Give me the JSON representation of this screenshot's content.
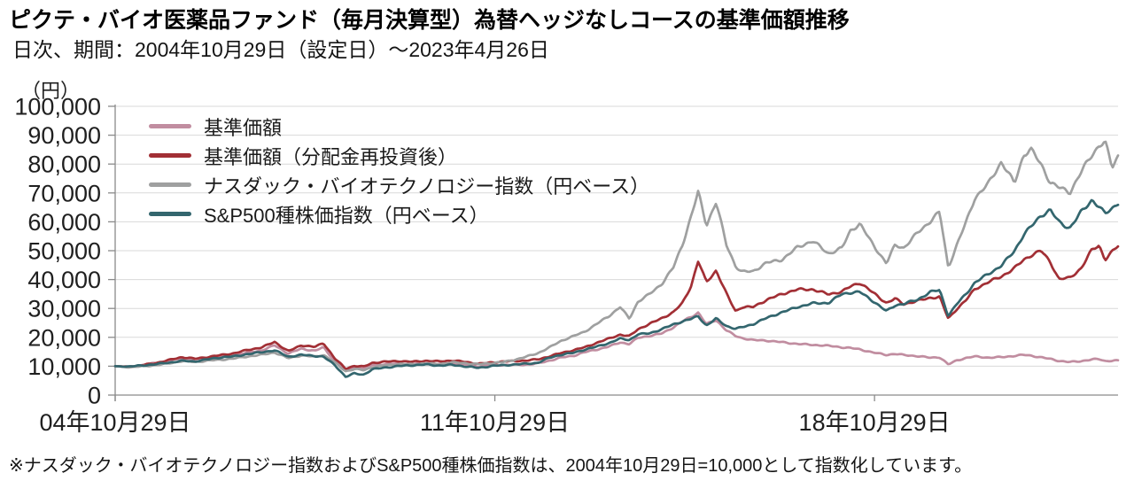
{
  "page": {
    "title": "ピクテ・バイオ医薬品ファンド（毎月決算型）為替ヘッジなしコースの基準価額推移",
    "subtitle": "日次、期間：2004年10月29日（設定日）～2023年4月26日"
  },
  "footnote": {
    "text": "※ナスダック・バイオテクノロジー指数およびS&P500種株価指数は、2004年10月29日=10,000として指数化しています。"
  },
  "colors": {
    "nav": "#c18da0",
    "nav_reinvested": "#a22f35",
    "nasdaq_biotech": "#9fa0a0",
    "sp500": "#33666e",
    "grid": "#d9d9d9",
    "axis": "#8a8a8a",
    "tick_text": "#1f1f1f"
  },
  "chart_data": {
    "type": "line",
    "unit_label": "（円）",
    "ylim": [
      0,
      100000
    ],
    "ytick_step": 10000,
    "ytick_labels": [
      "0",
      "10,000",
      "20,000",
      "30,000",
      "40,000",
      "50,000",
      "60,000",
      "70,000",
      "80,000",
      "90,000",
      "100,000"
    ],
    "x_range_years": [
      0,
      18.49
    ],
    "xticks": [
      {
        "t": 0,
        "label": "04年10月29日"
      },
      {
        "t": 7,
        "label": "11年10月29日"
      },
      {
        "t": 14,
        "label": "18年10月29日"
      }
    ],
    "legend_position": "top-left-inside",
    "x_years": [
      0,
      0.25,
      0.49,
      0.74,
      0.98,
      1.23,
      1.47,
      1.72,
      1.96,
      2.21,
      2.45,
      2.7,
      2.94,
      3.19,
      3.43,
      3.68,
      3.84,
      4.05,
      4.25,
      4.41,
      4.58,
      4.74,
      4.98,
      5.23,
      5.47,
      5.72,
      5.96,
      6.21,
      6.45,
      6.7,
      6.99,
      7.19,
      7.35,
      7.57,
      7.79,
      8.01,
      8.22,
      8.45,
      8.66,
      8.87,
      9.1,
      9.31,
      9.48,
      9.64,
      9.85,
      10.08,
      10.29,
      10.46,
      10.62,
      10.75,
      10.9,
      11.08,
      11.27,
      11.44,
      11.55,
      11.76,
      12.01,
      12.3,
      12.58,
      12.86,
      13.15,
      13.4,
      13.56,
      13.73,
      13.97,
      14.22,
      14.38,
      14.54,
      14.79,
      15.03,
      15.2,
      15.36,
      15.52,
      15.69,
      15.85,
      16.1,
      16.34,
      16.58,
      16.75,
      16.88,
      17.07,
      17.24,
      17.4,
      17.6,
      17.81,
      18.01,
      18.14,
      18.25,
      18.38,
      18.49
    ],
    "series": [
      {
        "name": "基準価額",
        "color": "nav",
        "values": [
          10000,
          9800,
          10300,
          11000,
          11800,
          12800,
          12300,
          12900,
          13400,
          13900,
          14800,
          15500,
          17200,
          14300,
          16000,
          15400,
          16600,
          11800,
          8700,
          9600,
          9200,
          10400,
          10800,
          11000,
          10800,
          11000,
          10700,
          10900,
          10500,
          9900,
          10300,
          10400,
          10500,
          10600,
          11000,
          11900,
          12900,
          13600,
          14900,
          15800,
          16800,
          18200,
          17600,
          19800,
          20500,
          21400,
          23500,
          25500,
          27000,
          28500,
          24500,
          26000,
          22500,
          20500,
          19800,
          19000,
          18800,
          18300,
          17800,
          17400,
          17000,
          16500,
          16300,
          15900,
          14800,
          13900,
          14200,
          13800,
          13500,
          13000,
          13200,
          10600,
          12000,
          12800,
          13300,
          13000,
          13200,
          13600,
          13900,
          13600,
          13000,
          12500,
          11900,
          11500,
          11800,
          12300,
          12400,
          11700,
          11900,
          11900
        ]
      },
      {
        "name": "基準価額（分配金再投資後）",
        "color": "nav_reinvested",
        "values": [
          10000,
          9800,
          10400,
          11100,
          12000,
          13100,
          12600,
          13300,
          13900,
          14500,
          15600,
          16500,
          18500,
          15200,
          17200,
          16600,
          18000,
          12700,
          9200,
          10200,
          9800,
          11100,
          11500,
          11800,
          11600,
          11900,
          11600,
          11900,
          11500,
          10900,
          11400,
          11600,
          11700,
          11900,
          12400,
          13500,
          14600,
          15500,
          16500,
          18000,
          19600,
          21000,
          20400,
          22800,
          24500,
          26600,
          28700,
          32000,
          38000,
          46500,
          39000,
          43000,
          35000,
          29000,
          30500,
          30600,
          33000,
          34900,
          36500,
          36700,
          35000,
          35800,
          37500,
          38800,
          35500,
          32000,
          33500,
          31500,
          32500,
          33600,
          34000,
          26500,
          30000,
          33000,
          36700,
          39000,
          41000,
          44000,
          47000,
          48500,
          50000,
          46000,
          40000,
          40500,
          44000,
          50500,
          52000,
          47000,
          49500,
          51500
        ]
      },
      {
        "name": "ナスダック・バイオテクノロジー指数（円ベース）",
        "color": "nasdaq_biotech",
        "values": [
          10000,
          9600,
          9900,
          10400,
          11000,
          11800,
          11400,
          11900,
          12300,
          12800,
          13400,
          13900,
          14700,
          12800,
          13800,
          13300,
          13900,
          11200,
          8200,
          9000,
          8700,
          9700,
          10300,
          10700,
          10600,
          11000,
          10800,
          11300,
          11000,
          10600,
          11200,
          11600,
          12200,
          13200,
          14400,
          16500,
          18800,
          20500,
          22000,
          24500,
          27200,
          30500,
          26500,
          32500,
          35000,
          38500,
          44000,
          52000,
          62000,
          70500,
          59000,
          67000,
          52000,
          44500,
          42500,
          42800,
          45900,
          47100,
          51100,
          53200,
          49000,
          51100,
          57200,
          59300,
          52000,
          45500,
          52000,
          51100,
          56300,
          60200,
          63300,
          44000,
          52000,
          60000,
          68500,
          73400,
          80700,
          73000,
          83000,
          85300,
          80000,
          74000,
          72000,
          70000,
          77000,
          83000,
          86500,
          88000,
          79000,
          83000
        ]
      },
      {
        "name": "S&P500種株価指数（円ベース）",
        "color": "sp500",
        "values": [
          10000,
          9900,
          10200,
          10600,
          11200,
          11900,
          11700,
          12400,
          13000,
          13400,
          14300,
          14900,
          15500,
          13200,
          13900,
          13600,
          13400,
          10400,
          6300,
          7400,
          7000,
          8900,
          9600,
          10100,
          10300,
          10500,
          10200,
          10500,
          10000,
          9400,
          10100,
          10300,
          10600,
          10900,
          11200,
          12900,
          13900,
          14600,
          15800,
          16800,
          18000,
          19500,
          19000,
          21000,
          21400,
          22900,
          24500,
          25500,
          26300,
          27200,
          24000,
          26500,
          24000,
          23000,
          23500,
          24500,
          26600,
          28700,
          30600,
          31800,
          31800,
          34900,
          35500,
          35800,
          32700,
          29000,
          31000,
          31500,
          33000,
          35800,
          36500,
          27500,
          31500,
          35000,
          38800,
          42000,
          45000,
          50000,
          55500,
          58000,
          62000,
          64000,
          60000,
          58000,
          63500,
          67500,
          65000,
          62500,
          64500,
          66500
        ]
      }
    ]
  }
}
